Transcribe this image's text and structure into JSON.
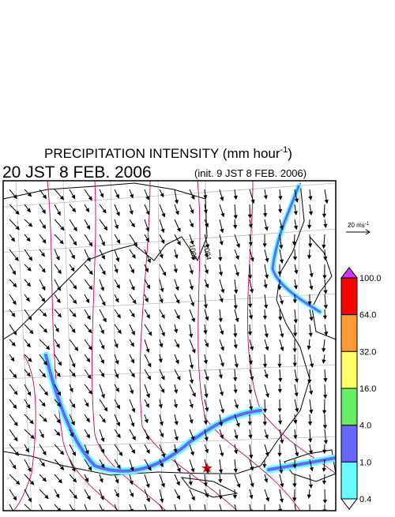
{
  "header": {
    "title": "PRECIPITATION INTENSITY (mm hour",
    "title_unit_exponent": "-1",
    "title_close": ")",
    "valid_time": "20 JST 8 FEB. 2006",
    "init_time": "(init. 9 JST 8 FEB. 2006)"
  },
  "vector_legend": {
    "label": "20 ms",
    "exponent": "-1"
  },
  "map": {
    "isobar_labels": [
      "1008",
      "1004"
    ]
  },
  "colorbar": {
    "over_color": "#cc33ff",
    "under_color": "#ffffff",
    "bands": [
      {
        "color": "#ff0000"
      },
      {
        "color": "#ff9933"
      },
      {
        "color": "#ffff66"
      },
      {
        "color": "#66ee66"
      },
      {
        "color": "#6666ff"
      },
      {
        "color": "#66ffff"
      }
    ],
    "labels": [
      "100.0",
      "64.0",
      "32.0",
      "16.0",
      "4.0",
      "1.0",
      "0.4"
    ]
  }
}
